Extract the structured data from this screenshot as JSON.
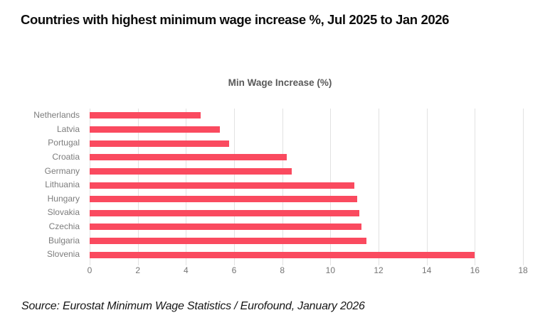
{
  "page": {
    "title": "Countries with highest minimum wage increase %, Jul 2025 to Jan 2026",
    "source": "Source: Eurostat Minimum Wage Statistics / Eurofound, January 2026"
  },
  "chart_data": {
    "type": "bar",
    "orientation": "horizontal",
    "title": "Min Wage Increase (%)",
    "categories": [
      "Netherlands",
      "Latvia",
      "Portugal",
      "Croatia",
      "Germany",
      "Lithuania",
      "Hungary",
      "Slovakia",
      "Czechia",
      "Bulgaria",
      "Slovenia"
    ],
    "values": [
      4.6,
      5.4,
      5.8,
      8.2,
      8.4,
      11.0,
      11.1,
      11.2,
      11.3,
      11.5,
      16.0
    ],
    "xlabel": "",
    "ylabel": "",
    "xlim": [
      0,
      18
    ],
    "x_ticks": [
      0,
      2,
      4,
      6,
      8,
      10,
      12,
      14,
      16,
      18
    ],
    "grid": true,
    "legend": "none",
    "colors": {
      "bar": "#fa4a5f",
      "gridline": "#e2e2e2",
      "category_label": "#7d7d7d",
      "tick_label": "#757575",
      "chart_title": "#595959",
      "page_title": "#0d0d0d",
      "source_text": "#161616"
    }
  }
}
